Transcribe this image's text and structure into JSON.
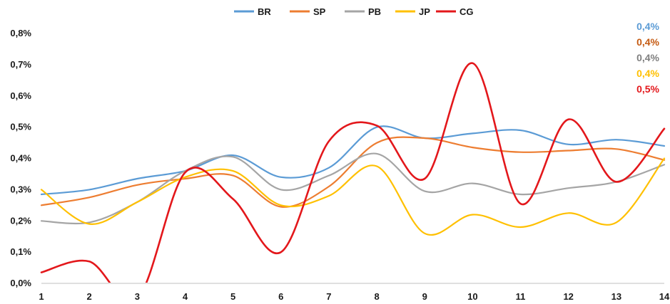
{
  "chart_data": {
    "type": "line",
    "title": "",
    "xlabel": "",
    "ylabel": "",
    "x": [
      1,
      2,
      3,
      4,
      5,
      6,
      7,
      8,
      9,
      10,
      11,
      12,
      13,
      14
    ],
    "ylim": [
      0,
      0.8
    ],
    "y_ticks": [
      "0,0%",
      "0,1%",
      "0,2%",
      "0,3%",
      "0,4%",
      "0,5%",
      "0,6%",
      "0,7%",
      "0,8%"
    ],
    "x_ticks": [
      "1",
      "2",
      "3",
      "4",
      "5",
      "6",
      "7",
      "8",
      "9",
      "10",
      "11",
      "12",
      "13",
      "14"
    ],
    "grid": false,
    "legend_position": "top",
    "series": [
      {
        "name": "BR",
        "color": "#5b9bd5",
        "values": [
          0.285,
          0.3,
          0.335,
          0.36,
          0.41,
          0.34,
          0.37,
          0.5,
          0.465,
          0.48,
          0.49,
          0.445,
          0.46,
          0.44
        ]
      },
      {
        "name": "SP",
        "color": "#ed7d31",
        "values": [
          0.25,
          0.275,
          0.315,
          0.335,
          0.345,
          0.245,
          0.31,
          0.45,
          0.465,
          0.435,
          0.42,
          0.425,
          0.43,
          0.395
        ]
      },
      {
        "name": "PB",
        "color": "#a5a5a5",
        "values": [
          0.2,
          0.195,
          0.26,
          0.36,
          0.405,
          0.3,
          0.345,
          0.415,
          0.295,
          0.32,
          0.285,
          0.305,
          0.325,
          0.38
        ]
      },
      {
        "name": "JP",
        "color": "#ffc000",
        "values": [
          0.3,
          0.19,
          0.26,
          0.34,
          0.36,
          0.25,
          0.28,
          0.375,
          0.16,
          0.22,
          0.18,
          0.225,
          0.195,
          0.4
        ]
      },
      {
        "name": "CG",
        "color": "#e3171b",
        "values": [
          0.035,
          0.07,
          -0.05,
          0.355,
          0.27,
          0.1,
          0.455,
          0.505,
          0.335,
          0.705,
          0.255,
          0.525,
          0.325,
          0.495
        ]
      }
    ],
    "end_labels": [
      {
        "text": "0,4%",
        "color": "#5b9bd5"
      },
      {
        "text": "0,4%",
        "color": "#c55a11"
      },
      {
        "text": "0,4%",
        "color": "#7f7f7f"
      },
      {
        "text": "0,4%",
        "color": "#ffc000"
      },
      {
        "text": "0,5%",
        "color": "#e3171b"
      }
    ]
  }
}
